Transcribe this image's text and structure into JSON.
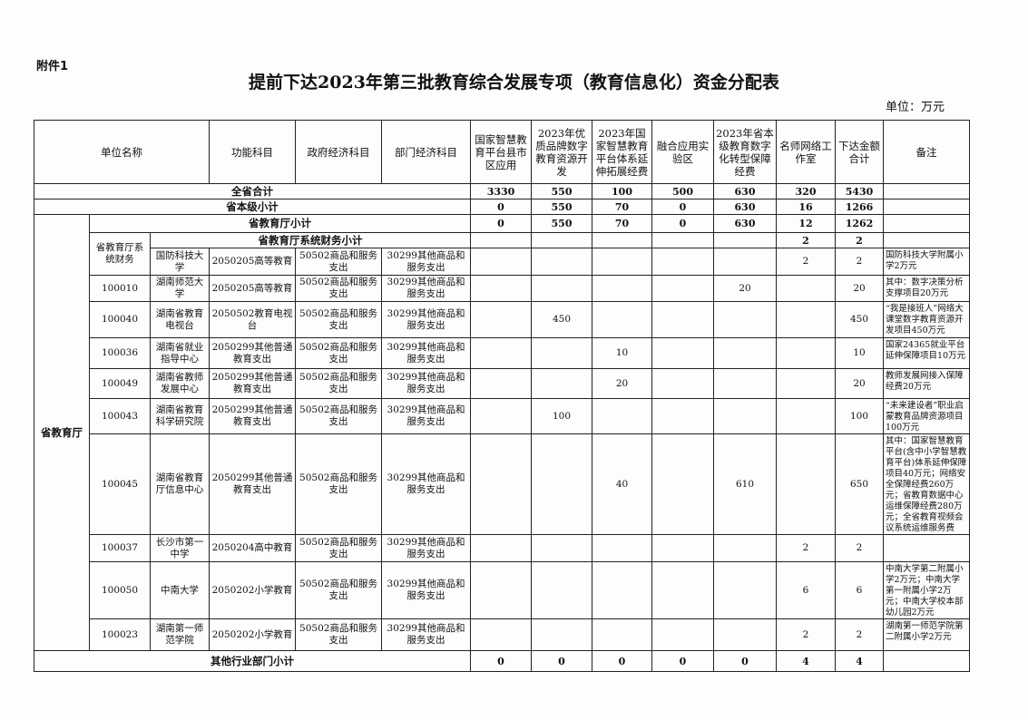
{
  "attachment": "附件1",
  "title": "提前下达2023年第三批教育综合发展专项（教育信息化）资金分配表",
  "unit": "单位：万元",
  "headers": [
    "单位名称",
    "功能科目",
    "政府经济科目",
    "部门经济科目",
    "国家智慧教育平台县市区应用",
    "2023年优质品牌数字教育资源开发",
    "2023年国家智慧教育平台体系延伸拓展经费",
    "融合应用实验区",
    "2023年省本级教育数字化转型保障经费",
    "名师网络工作室",
    "下达金额合计",
    "备注"
  ],
  "totals": [
    {
      "label": "全省合计",
      "values": [
        "3330",
        "550",
        "100",
        "500",
        "630",
        "320",
        "5430"
      ]
    },
    {
      "label": "省本级小计",
      "values": [
        "0",
        "550",
        "70",
        "0",
        "630",
        "16",
        "1266"
      ]
    },
    {
      "label": "省教育厅小计",
      "values": [
        "0",
        "550",
        "70",
        "0",
        "630",
        "12",
        "1262"
      ]
    },
    {
      "label": "省教育厅系统财务小计",
      "values": [
        "",
        "",
        "",
        "",
        "",
        "2",
        "2"
      ]
    }
  ],
  "group_label": "省教育厅",
  "subgroup_label": "省教育厅系统财务",
  "rows": [
    {
      "code": "",
      "name": "国防科技大学",
      "func": "2050205高等教育",
      "gov": "50502商品和服务支出",
      "dept": "30299其他商品和服务支出",
      "values": [
        "",
        "",
        "",
        "",
        "",
        "2",
        "2"
      ],
      "note": "国防科技大学附属小学2万元"
    },
    {
      "code": "100010",
      "name": "湖南师范大学",
      "func": "2050205高等教育",
      "gov": "50502商品和服务支出",
      "dept": "30299其他商品和服务支出",
      "values": [
        "",
        "",
        "",
        "",
        "20",
        "",
        "20"
      ],
      "note": "其中：数字决策分析支撑项目20万元"
    },
    {
      "code": "100040",
      "name": "湖南省教育电视台",
      "func": "2050502教育电视台",
      "gov": "50502商品和服务支出",
      "dept": "30299其他商品和服务支出",
      "values": [
        "",
        "450",
        "",
        "",
        "",
        "",
        "450"
      ],
      "note": "“我是接班人”网络大课堂数字教育资源开发项目450万元"
    },
    {
      "code": "100036",
      "name": "湖南省就业指导中心",
      "func": "2050299其他普通教育支出",
      "gov": "50502商品和服务支出",
      "dept": "30299其他商品和服务支出",
      "values": [
        "",
        "",
        "10",
        "",
        "",
        "",
        "10"
      ],
      "note": "国家24365就业平台延伸保障项目10万元"
    },
    {
      "code": "100049",
      "name": "湖南省教师发展中心",
      "func": "2050299其他普通教育支出",
      "gov": "50502商品和服务支出",
      "dept": "30299其他商品和服务支出",
      "values": [
        "",
        "",
        "20",
        "",
        "",
        "",
        "20"
      ],
      "note": "教师发展网接入保障经费20万元"
    },
    {
      "code": "100043",
      "name": "湖南省教育科学研究院",
      "func": "2050299其他普通教育支出",
      "gov": "50502商品和服务支出",
      "dept": "30299其他商品和服务支出",
      "values": [
        "",
        "100",
        "",
        "",
        "",
        "",
        "100"
      ],
      "note": "“未来建设者”职业启蒙教育品牌资源项目100万元"
    },
    {
      "code": "100045",
      "name": "湖南省教育厅信息中心",
      "func": "2050299其他普通教育支出",
      "gov": "50502商品和服务支出",
      "dept": "30299其他商品和服务支出",
      "values": [
        "",
        "",
        "40",
        "",
        "610",
        "",
        "650"
      ],
      "note": "其中：国家智慧教育平台(含中小学智慧教育平台)体系延伸保障项目40万元；网络安全保障经费260万元；省教育数据中心运维保障经费280万元；全省教育视频会议系统运维服务费"
    },
    {
      "code": "100037",
      "name": "长沙市第一中学",
      "func": "2050204高中教育",
      "gov": "50502商品和服务支出",
      "dept": "30299其他商品和服务支出",
      "values": [
        "",
        "",
        "",
        "",
        "",
        "2",
        "2"
      ],
      "note": ""
    },
    {
      "code": "100050",
      "name": "中南大学",
      "func": "2050202小学教育",
      "gov": "50502商品和服务支出",
      "dept": "30299其他商品和服务支出",
      "values": [
        "",
        "",
        "",
        "",
        "",
        "6",
        "6"
      ],
      "note": "中南大学第二附属小学2万元；中南大学第一附属小学2万元；中南大学校本部幼儿园2万元"
    },
    {
      "code": "100023",
      "name": "湖南第一师范学院",
      "func": "2050202小学教育",
      "gov": "50502商品和服务支出",
      "dept": "30299其他商品和服务支出",
      "values": [
        "",
        "",
        "",
        "",
        "",
        "2",
        "2"
      ],
      "note": "湖南第一师范学院第二附属小学2万元"
    }
  ],
  "other": {
    "label": "其他行业部门小计",
    "values": [
      "0",
      "0",
      "0",
      "0",
      "0",
      "4",
      "4"
    ]
  }
}
